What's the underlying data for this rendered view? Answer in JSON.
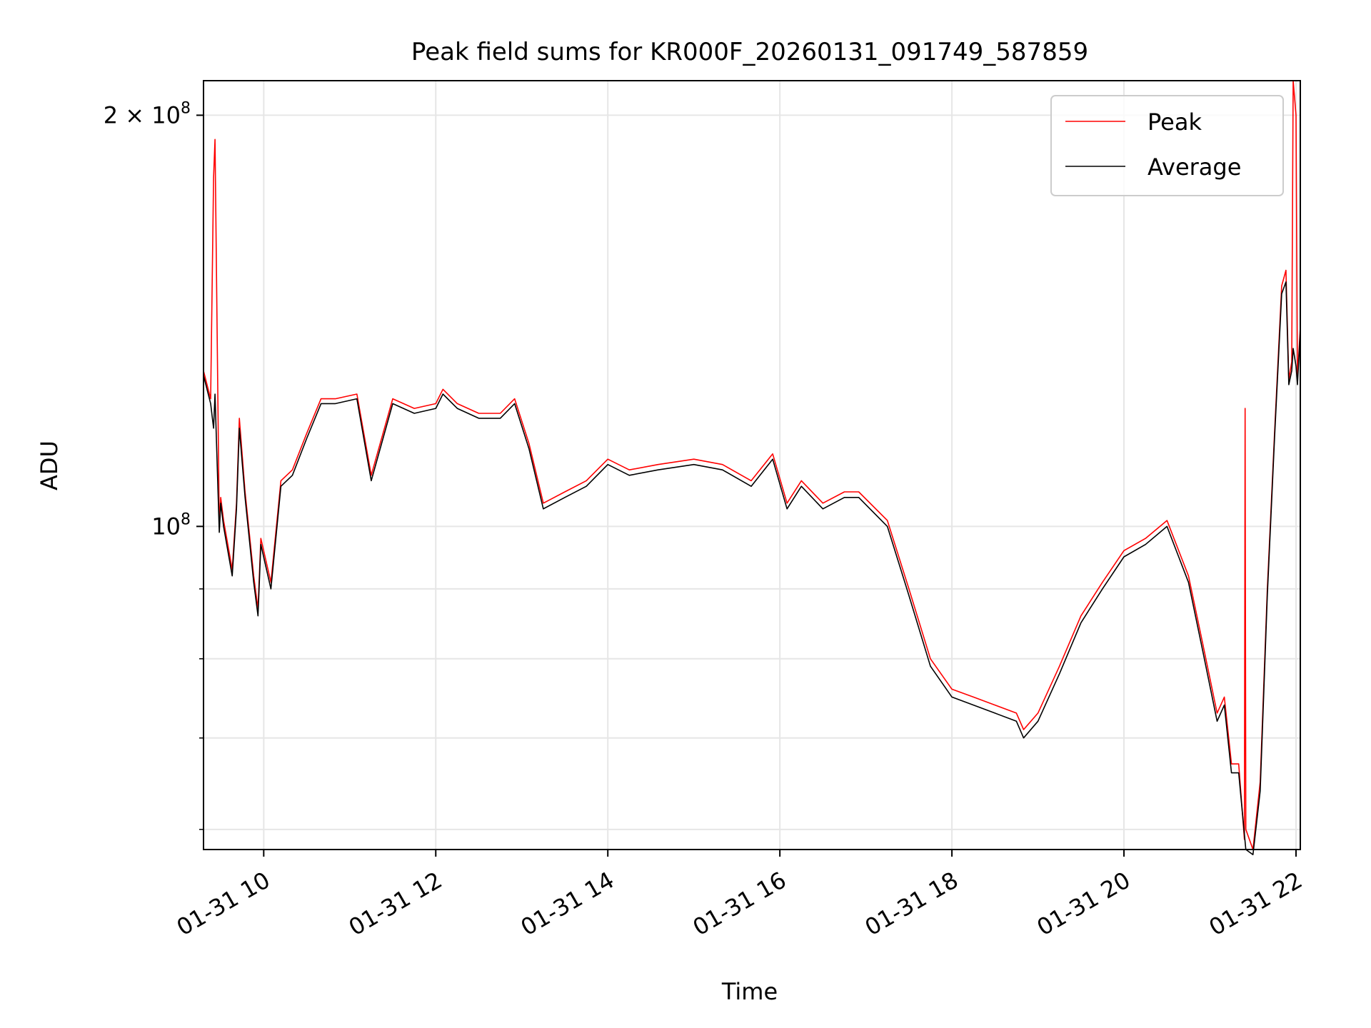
{
  "chart_data": {
    "type": "line",
    "title": "Peak field sums for KR000F_20260131_091749_587859",
    "xlabel": "Time",
    "ylabel": "ADU",
    "xscale": "time",
    "yscale": "log",
    "grid": true,
    "legend_position": "top-right",
    "xlim": [
      "2026-01-31 09:18",
      "2026-01-31 22:03"
    ],
    "ylim": [
      58000000,
      212000000
    ],
    "x_ticks": [
      "01-31 10",
      "01-31 12",
      "01-31 14",
      "01-31 16",
      "01-31 18",
      "01-31 20",
      "01-31 22"
    ],
    "x_tick_values": [
      "2026-01-31 10:00",
      "2026-01-31 12:00",
      "2026-01-31 14:00",
      "2026-01-31 16:00",
      "2026-01-31 18:00",
      "2026-01-31 20:00",
      "2026-01-31 22:00"
    ],
    "y_ticks": [
      {
        "value": 100000000,
        "base": "10",
        "exp": "8",
        "mult": ""
      },
      {
        "value": 200000000,
        "base": "10",
        "exp": "8",
        "mult": "2 × "
      }
    ],
    "y_minor_ticks": [
      60000000,
      70000000,
      80000000,
      90000000
    ],
    "series": [
      {
        "name": "Peak",
        "color": "#ff0000",
        "x": [
          "2026-01-31 09:18",
          "2026-01-31 09:23",
          "2026-01-31 09:25",
          "2026-01-31 09:26",
          "2026-01-31 09:29",
          "2026-01-31 09:30",
          "2026-01-31 09:32",
          "2026-01-31 09:38",
          "2026-01-31 09:41",
          "2026-01-31 09:43",
          "2026-01-31 09:47",
          "2026-01-31 09:53",
          "2026-01-31 09:56",
          "2026-01-31 09:58",
          "2026-01-31 10:05",
          "2026-01-31 10:12",
          "2026-01-31 10:20",
          "2026-01-31 10:30",
          "2026-01-31 10:40",
          "2026-01-31 10:50",
          "2026-01-31 11:05",
          "2026-01-31 11:15",
          "2026-01-31 11:30",
          "2026-01-31 11:45",
          "2026-01-31 12:00",
          "2026-01-31 12:05",
          "2026-01-31 12:15",
          "2026-01-31 12:30",
          "2026-01-31 12:45",
          "2026-01-31 12:55",
          "2026-01-31 13:05",
          "2026-01-31 13:15",
          "2026-01-31 13:30",
          "2026-01-31 13:45",
          "2026-01-31 14:00",
          "2026-01-31 14:15",
          "2026-01-31 14:35",
          "2026-01-31 15:00",
          "2026-01-31 15:20",
          "2026-01-31 15:40",
          "2026-01-31 15:55",
          "2026-01-31 16:05",
          "2026-01-31 16:15",
          "2026-01-31 16:30",
          "2026-01-31 16:45",
          "2026-01-31 16:55",
          "2026-01-31 17:15",
          "2026-01-31 17:30",
          "2026-01-31 17:45",
          "2026-01-31 18:00",
          "2026-01-31 18:15",
          "2026-01-31 18:30",
          "2026-01-31 18:45",
          "2026-01-31 18:50",
          "2026-01-31 19:00",
          "2026-01-31 19:15",
          "2026-01-31 19:30",
          "2026-01-31 19:45",
          "2026-01-31 20:00",
          "2026-01-31 20:15",
          "2026-01-31 20:30",
          "2026-01-31 20:45",
          "2026-01-31 20:55",
          "2026-01-31 21:05",
          "2026-01-31 21:10",
          "2026-01-31 21:15",
          "2026-01-31 21:20",
          "2026-01-31 21:24",
          "2026-01-31 21:24:30",
          "2026-01-31 21:25",
          "2026-01-31 21:30",
          "2026-01-31 21:35",
          "2026-01-31 21:40",
          "2026-01-31 21:45",
          "2026-01-31 21:50",
          "2026-01-31 21:53",
          "2026-01-31 21:55",
          "2026-01-31 21:57",
          "2026-01-31 21:58",
          "2026-01-31 22:00",
          "2026-01-31 22:01",
          "2026-01-31 22:03"
        ],
        "y": [
          130000000,
          124000000,
          180000000,
          192000000,
          100000000,
          105000000,
          101000000,
          93000000,
          104000000,
          120000000,
          106000000,
          92000000,
          87000000,
          98000000,
          91000000,
          108000000,
          110000000,
          117000000,
          124000000,
          124000000,
          125000000,
          109000000,
          124000000,
          122000000,
          123000000,
          126000000,
          123000000,
          121000000,
          121000000,
          124000000,
          115000000,
          104000000,
          106000000,
          108000000,
          112000000,
          110000000,
          111000000,
          112000000,
          111000000,
          108000000,
          113000000,
          104000000,
          108000000,
          104000000,
          106000000,
          106000000,
          101000000,
          90000000,
          80000000,
          76000000,
          75000000,
          74000000,
          73000000,
          71000000,
          73000000,
          79000000,
          86000000,
          91000000,
          96000000,
          98000000,
          101000000,
          92000000,
          82000000,
          73000000,
          75000000,
          67000000,
          67000000,
          59000000,
          122000000,
          60000000,
          58000000,
          65000000,
          90000000,
          117000000,
          150000000,
          154000000,
          128000000,
          132000000,
          212000000,
          200000000,
          128000000,
          140000000
        ]
      },
      {
        "name": "Average",
        "color": "#000000",
        "x": [
          "2026-01-31 09:18",
          "2026-01-31 09:23",
          "2026-01-31 09:25",
          "2026-01-31 09:26",
          "2026-01-31 09:29",
          "2026-01-31 09:30",
          "2026-01-31 09:32",
          "2026-01-31 09:38",
          "2026-01-31 09:41",
          "2026-01-31 09:43",
          "2026-01-31 09:47",
          "2026-01-31 09:53",
          "2026-01-31 09:56",
          "2026-01-31 09:58",
          "2026-01-31 10:05",
          "2026-01-31 10:12",
          "2026-01-31 10:20",
          "2026-01-31 10:30",
          "2026-01-31 10:40",
          "2026-01-31 10:50",
          "2026-01-31 11:05",
          "2026-01-31 11:15",
          "2026-01-31 11:30",
          "2026-01-31 11:45",
          "2026-01-31 12:00",
          "2026-01-31 12:05",
          "2026-01-31 12:15",
          "2026-01-31 12:30",
          "2026-01-31 12:45",
          "2026-01-31 12:55",
          "2026-01-31 13:05",
          "2026-01-31 13:15",
          "2026-01-31 13:30",
          "2026-01-31 13:45",
          "2026-01-31 14:00",
          "2026-01-31 14:15",
          "2026-01-31 14:35",
          "2026-01-31 15:00",
          "2026-01-31 15:20",
          "2026-01-31 15:40",
          "2026-01-31 15:55",
          "2026-01-31 16:05",
          "2026-01-31 16:15",
          "2026-01-31 16:30",
          "2026-01-31 16:45",
          "2026-01-31 16:55",
          "2026-01-31 17:15",
          "2026-01-31 17:30",
          "2026-01-31 17:45",
          "2026-01-31 18:00",
          "2026-01-31 18:15",
          "2026-01-31 18:30",
          "2026-01-31 18:45",
          "2026-01-31 18:50",
          "2026-01-31 19:00",
          "2026-01-31 19:15",
          "2026-01-31 19:30",
          "2026-01-31 19:45",
          "2026-01-31 20:00",
          "2026-01-31 20:15",
          "2026-01-31 20:30",
          "2026-01-31 20:45",
          "2026-01-31 20:55",
          "2026-01-31 21:05",
          "2026-01-31 21:10",
          "2026-01-31 21:15",
          "2026-01-31 21:20",
          "2026-01-31 21:25",
          "2026-01-31 21:30",
          "2026-01-31 21:35",
          "2026-01-31 21:40",
          "2026-01-31 21:45",
          "2026-01-31 21:50",
          "2026-01-31 21:53",
          "2026-01-31 21:55",
          "2026-01-31 21:57",
          "2026-01-31 21:58",
          "2026-01-31 22:00",
          "2026-01-31 22:01",
          "2026-01-31 22:03"
        ],
        "y": [
          129000000,
          123000000,
          118000000,
          125000000,
          99000000,
          104000000,
          100000000,
          92000000,
          103000000,
          118000000,
          105000000,
          91000000,
          86000000,
          97000000,
          90000000,
          107000000,
          109000000,
          116000000,
          123000000,
          123000000,
          124000000,
          108000000,
          123000000,
          121000000,
          122000000,
          125000000,
          122000000,
          120000000,
          120000000,
          123000000,
          114000000,
          103000000,
          105000000,
          107000000,
          111000000,
          109000000,
          110000000,
          111000000,
          110000000,
          107000000,
          112000000,
          103000000,
          107000000,
          103000000,
          105000000,
          105000000,
          100000000,
          89000000,
          79000000,
          75000000,
          74000000,
          73000000,
          72000000,
          70000000,
          72000000,
          78000000,
          85000000,
          90000000,
          95000000,
          97000000,
          100000000,
          91000000,
          81000000,
          72000000,
          74000000,
          66000000,
          66000000,
          58000000,
          57500000,
          64000000,
          89000000,
          116000000,
          148000000,
          151000000,
          127000000,
          130000000,
          135000000,
          131000000,
          127000000,
          139000000
        ]
      }
    ]
  }
}
